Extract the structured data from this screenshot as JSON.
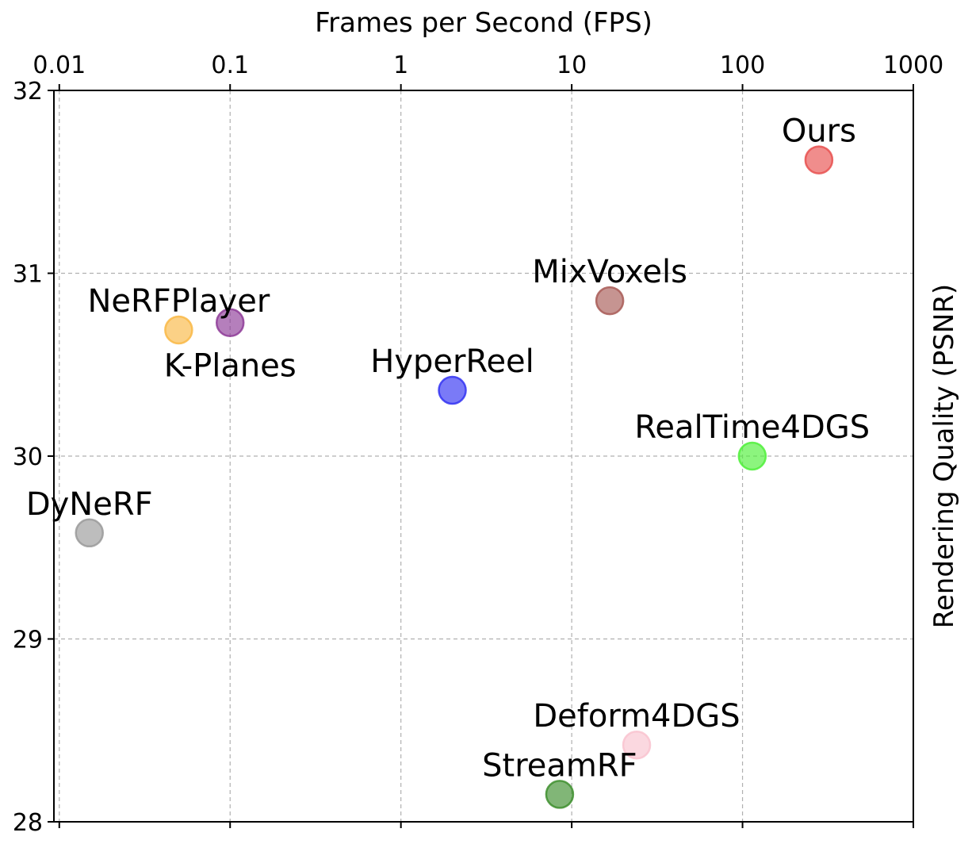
{
  "chart_data": {
    "type": "scatter",
    "xlabel": "Frames per Second (FPS)",
    "ylabel": "Rendering Quality (PSNR)",
    "xscale": "log",
    "xlim": [
      0.0093,
      1000
    ],
    "ylim": [
      28,
      32
    ],
    "xticks": [
      {
        "value": 0.01,
        "label": "0.01"
      },
      {
        "value": 0.1,
        "label": "0.1"
      },
      {
        "value": 1,
        "label": "1"
      },
      {
        "value": 10,
        "label": "10"
      },
      {
        "value": 100,
        "label": "100"
      },
      {
        "value": 1000,
        "label": "1000"
      }
    ],
    "yticks": [
      {
        "value": 28,
        "label": "28"
      },
      {
        "value": 29,
        "label": "29"
      },
      {
        "value": 30,
        "label": "30"
      },
      {
        "value": 31,
        "label": "31"
      },
      {
        "value": 32,
        "label": "32"
      }
    ],
    "grid": true,
    "x_axis_position": "top",
    "y_label_position": "right",
    "points": [
      {
        "label": "Ours",
        "x": 280,
        "y": 31.62,
        "color": "#e8504f",
        "label_pos": "above"
      },
      {
        "label": "MixVoxels",
        "x": 16.7,
        "y": 30.85,
        "color": "#a85a56",
        "label_pos": "above"
      },
      {
        "label": "NeRFPlayer",
        "x": 0.05,
        "y": 30.69,
        "color": "#f9b845",
        "label_pos": "above"
      },
      {
        "label": "K-Planes",
        "x": 0.1,
        "y": 30.73,
        "color": "#8e3b98",
        "label_pos": "below"
      },
      {
        "label": "HyperReel",
        "x": 2.0,
        "y": 30.36,
        "color": "#3333f2",
        "label_pos": "above"
      },
      {
        "label": "RealTime4DGS",
        "x": 114,
        "y": 30.0,
        "color": "#4ff039",
        "label_pos": "above"
      },
      {
        "label": "DyNeRF",
        "x": 0.015,
        "y": 29.58,
        "color": "#9a9a9a",
        "label_pos": "above"
      },
      {
        "label": "Deform4DGS",
        "x": 24,
        "y": 28.42,
        "color": "#f9c3cf",
        "label_pos": "above"
      },
      {
        "label": "StreamRF",
        "x": 8.5,
        "y": 28.15,
        "color": "#3e8f2e",
        "label_pos": "above"
      }
    ]
  }
}
